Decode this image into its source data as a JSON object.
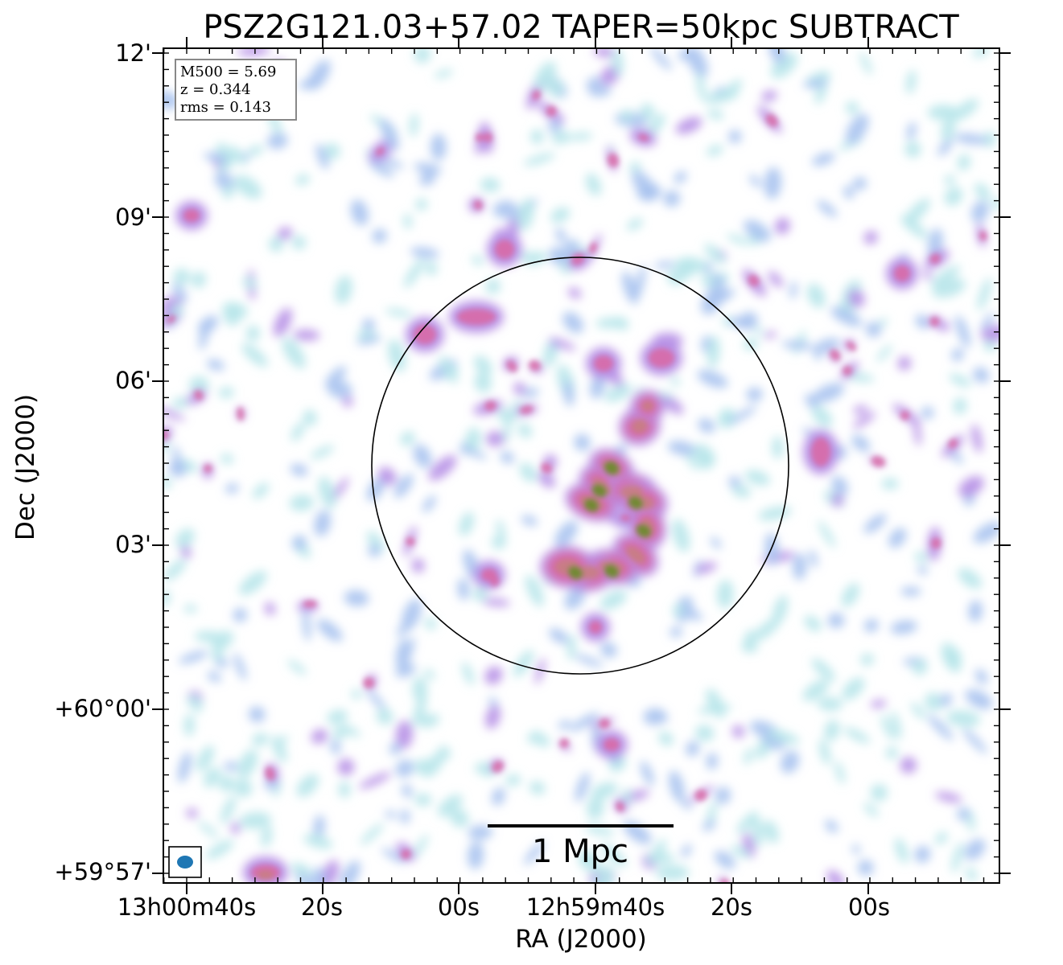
{
  "chart_data": {
    "type": "heatmap",
    "title": "PSZ2G121.03+57.02 TAPER=50kpc SUBTRACT",
    "xlabel": "RA (J2000)",
    "ylabel": "Dec (J2000)",
    "x_ticks": [
      "13h00m40s",
      "20s",
      "00s",
      "12h59m40s",
      "20s",
      "00s"
    ],
    "y_ticks": [
      "12'",
      "09'",
      "06'",
      "03'",
      "+60°00'",
      "+59°57'"
    ],
    "info_box": {
      "m500": "M500 = 5.69",
      "z": "z = 0.344",
      "rms": "rms = 0.143"
    },
    "scale_bar_label": "1 Mpc",
    "colormap": [
      "#b8e6ea",
      "#a9c3ef",
      "#b68fe6",
      "#d86aa6",
      "#c87e82",
      "#6e8a2e"
    ],
    "colors": {
      "beam": "#1f77b4",
      "circle": "#000000",
      "info_border": "#888888"
    }
  }
}
